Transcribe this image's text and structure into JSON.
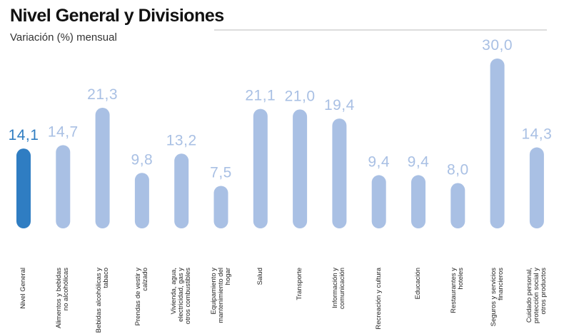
{
  "chart_data": {
    "type": "bar",
    "title": "Nivel General y Divisiones",
    "subtitle": "Variación (%) mensual",
    "categories": [
      "Nivel General",
      "Alimentos y bebidas no alcohólicas",
      "Bebidas alcohólicas y tabaco",
      "Prendas de vestir y calzado",
      "Vivienda, agua, electricidad, gas y otros combustibles",
      "Equipamiento y mantenimiento del hogar",
      "Salud",
      "Transporte",
      "Información y comunicación",
      "Recreación y cultura",
      "Educación",
      "Restaurantes y hoteles",
      "Seguros y servicios financieros",
      "Cuidado personal, protección social y otros productos"
    ],
    "values": [
      14.1,
      14.7,
      21.3,
      9.8,
      13.2,
      7.5,
      21.1,
      21.0,
      19.4,
      9.4,
      9.4,
      8.0,
      30.0,
      14.3
    ],
    "value_labels": [
      "14,1",
      "14,7",
      "21,3",
      "9,8",
      "13,2",
      "7,5",
      "21,1",
      "21,0",
      "19,4",
      "9,4",
      "9,4",
      "8,0",
      "30,0",
      "14,3"
    ],
    "colors": [
      "#2f7dc2",
      "#a9c0e4",
      "#a9c0e4",
      "#a9c0e4",
      "#a9c0e4",
      "#a9c0e4",
      "#a9c0e4",
      "#a9c0e4",
      "#a9c0e4",
      "#a9c0e4",
      "#a9c0e4",
      "#a9c0e4",
      "#a9c0e4",
      "#a9c0e4"
    ]
  }
}
